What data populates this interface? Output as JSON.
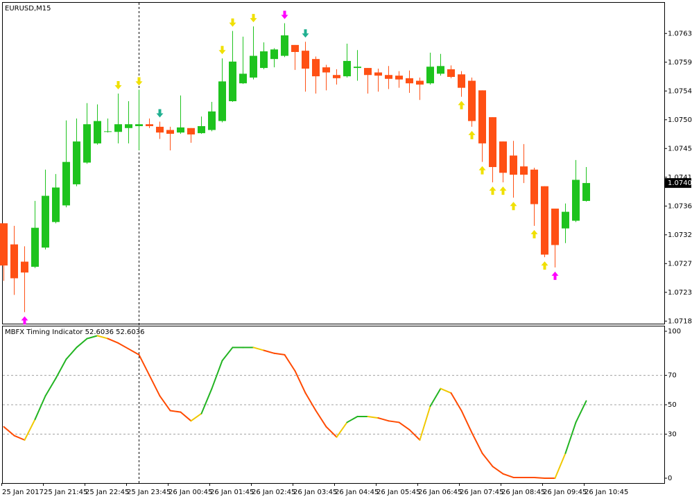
{
  "chart_data": [
    {
      "type": "candlestick",
      "title": "EURUSD,M15",
      "open": [
        1.07338,
        1.07305,
        1.07278,
        1.0727,
        1.073,
        1.0734,
        1.07366,
        1.07399,
        1.07433,
        1.07463,
        1.07481,
        1.07481,
        1.07487,
        1.0749,
        1.07493,
        1.07489,
        1.07484,
        1.0748,
        1.07487,
        1.07479,
        1.07484,
        1.07498,
        1.07529,
        1.07557,
        1.07566,
        1.07581,
        1.07595,
        1.076,
        1.07617,
        1.07608,
        1.07595,
        1.07582,
        1.0757,
        1.07568,
        1.07581,
        1.07581,
        1.07574,
        1.0757,
        1.07569,
        1.07565,
        1.07561,
        1.07557,
        1.07572,
        1.07579,
        1.07571,
        1.07561,
        1.07546,
        1.07504,
        1.07466,
        1.07444,
        1.07427,
        1.07422,
        1.07396,
        1.07361,
        1.0733,
        1.07342,
        1.07373
      ],
      "high": [
        1.07338,
        1.07334,
        1.07302,
        1.07373,
        1.07422,
        1.07415,
        1.07499,
        1.07502,
        1.07526,
        1.07524,
        1.07502,
        1.07541,
        1.07529,
        1.07547,
        1.07502,
        1.07497,
        1.07489,
        1.07538,
        1.07487,
        1.07505,
        1.07528,
        1.07596,
        1.07639,
        1.0763,
        1.07646,
        1.07621,
        1.07612,
        1.07651,
        1.07617,
        1.07622,
        1.07599,
        1.07586,
        1.07579,
        1.07619,
        1.07609,
        1.07581,
        1.0758,
        1.07584,
        1.07576,
        1.07577,
        1.07566,
        1.07605,
        1.07603,
        1.07585,
        1.07576,
        1.07566,
        1.07546,
        1.07504,
        1.07466,
        1.07467,
        1.07462,
        1.07425,
        1.07396,
        1.07361,
        1.07369,
        1.07437,
        1.07426
      ],
      "low": [
        1.07248,
        1.07226,
        1.07199,
        1.07268,
        1.07297,
        1.07338,
        1.07363,
        1.07396,
        1.07431,
        1.07461,
        1.0748,
        1.07463,
        1.07463,
        1.07452,
        1.07487,
        1.0747,
        1.07452,
        1.07478,
        1.07464,
        1.07478,
        1.07482,
        1.07496,
        1.07528,
        1.07556,
        1.07563,
        1.07579,
        1.07582,
        1.07598,
        1.07578,
        1.07544,
        1.07541,
        1.07546,
        1.07555,
        1.07566,
        1.07561,
        1.07541,
        1.07544,
        1.07548,
        1.0755,
        1.07542,
        1.07531,
        1.07555,
        1.07569,
        1.07565,
        1.07536,
        1.07489,
        1.07434,
        1.07402,
        1.07402,
        1.07378,
        1.07401,
        1.07334,
        1.07285,
        1.07269,
        1.07307,
        1.0734,
        1.07372
      ],
      "close": [
        1.07272,
        1.07252,
        1.07261,
        1.07331,
        1.07381,
        1.07394,
        1.07434,
        1.07466,
        1.07493,
        1.07498,
        1.07482,
        1.07493,
        1.07493,
        1.07493,
        1.0749,
        1.0748,
        1.07478,
        1.07488,
        1.07477,
        1.0749,
        1.07513,
        1.0756,
        1.07591,
        1.07572,
        1.076,
        1.07607,
        1.0761,
        1.07632,
        1.07606,
        1.0758,
        1.07568,
        1.07574,
        1.07565,
        1.07592,
        1.07583,
        1.0757,
        1.07569,
        1.07564,
        1.07563,
        1.07557,
        1.07555,
        1.07583,
        1.07584,
        1.07567,
        1.0755,
        1.07498,
        1.07463,
        1.07426,
        1.07417,
        1.07414,
        1.07414,
        1.07368,
        1.07289,
        1.07304,
        1.07356,
        1.07406,
        1.07401
      ],
      "up_color": "#1ec31e",
      "down_color": "#ff5014",
      "current_price": 1.07401,
      "ylim": [
        1.07181,
        1.07683
      ],
      "yticks": [
        1.07635,
        {
          "value": 1.0759,
          "label": "1.07590"
        },
        1.07545,
        {
          "value": 1.075,
          "label": "1.07500"
        },
        1.07455,
        {
          "value": 1.0741,
          "label": "1.07410"
        },
        1.07365,
        {
          "value": 1.0732,
          "label": "1.07320"
        },
        1.07275,
        {
          "value": 1.0723,
          "label": "1.07230"
        },
        1.07185
      ],
      "sell_arrows": [
        {
          "index": 11,
          "color": "#f0e000"
        },
        {
          "index": 13,
          "color": "#f0e000"
        },
        {
          "index": 15,
          "color": "#20b090"
        },
        {
          "index": 21,
          "color": "#f0e000"
        },
        {
          "index": 22,
          "color": "#f0e000"
        },
        {
          "index": 24,
          "color": "#f0e000"
        },
        {
          "index": 27,
          "color": "#ff00ff"
        },
        {
          "index": 29,
          "color": "#20b090"
        }
      ],
      "buy_arrows": [
        {
          "index": 2,
          "color": "#ff00ff"
        },
        {
          "index": 44,
          "color": "#f0e000"
        },
        {
          "index": 45,
          "color": "#f0e000"
        },
        {
          "index": 46,
          "color": "#f0e000"
        },
        {
          "index": 47,
          "color": "#f0e000"
        },
        {
          "index": 48,
          "color": "#f0e000"
        },
        {
          "index": 49,
          "color": "#f0e000"
        },
        {
          "index": 51,
          "color": "#f0e000"
        },
        {
          "index": 52,
          "color": "#f0e000"
        },
        {
          "index": 53,
          "color": "#ff00ff"
        }
      ]
    },
    {
      "type": "line",
      "title": "MBFX Timing Indicator 52.6036 52.6036",
      "categories": [
        "25 Jan 2017",
        null,
        null,
        null,
        "25 Jan 21:45",
        null,
        null,
        null,
        "25 Jan 22:45",
        null,
        null,
        null,
        "25 Jan 23:45",
        null,
        null,
        null,
        "26 Jan 00:45",
        null,
        null,
        null,
        "26 Jan 01:45",
        null,
        null,
        null,
        "26 Jan 02:45",
        null,
        null,
        null,
        "26 Jan 03:45",
        null,
        null,
        null,
        "26 Jan 04:45",
        null,
        null,
        null,
        "26 Jan 05:45",
        null,
        null,
        null,
        "26 Jan 06:45",
        null,
        null,
        null,
        "26 Jan 07:45",
        null,
        null,
        null,
        "26 Jan 08:45",
        null,
        null,
        null,
        "26 Jan 09:45",
        null,
        null,
        null,
        "26 Jan 10:45"
      ],
      "values": [
        35,
        29,
        26,
        40,
        56,
        68,
        81,
        89,
        95,
        97,
        95,
        92,
        88,
        84,
        70,
        56,
        46,
        45,
        39,
        44,
        61,
        80,
        89,
        89,
        89,
        87,
        85,
        84,
        73,
        58,
        46,
        35,
        28,
        38,
        42,
        42,
        41,
        39,
        38,
        33,
        26,
        49,
        61,
        58,
        46,
        31,
        17,
        8,
        3,
        0.5,
        0.5,
        0.5,
        0,
        0,
        17,
        38,
        52.6036
      ],
      "colors": {
        "up": "#22b422",
        "down": "#ff4a00",
        "turn": "#f0c800"
      },
      "ylim": [
        -3.3,
        103.3
      ],
      "yticks": [
        100,
        70,
        50,
        30,
        0
      ],
      "levels": [
        70,
        50,
        30
      ]
    }
  ]
}
